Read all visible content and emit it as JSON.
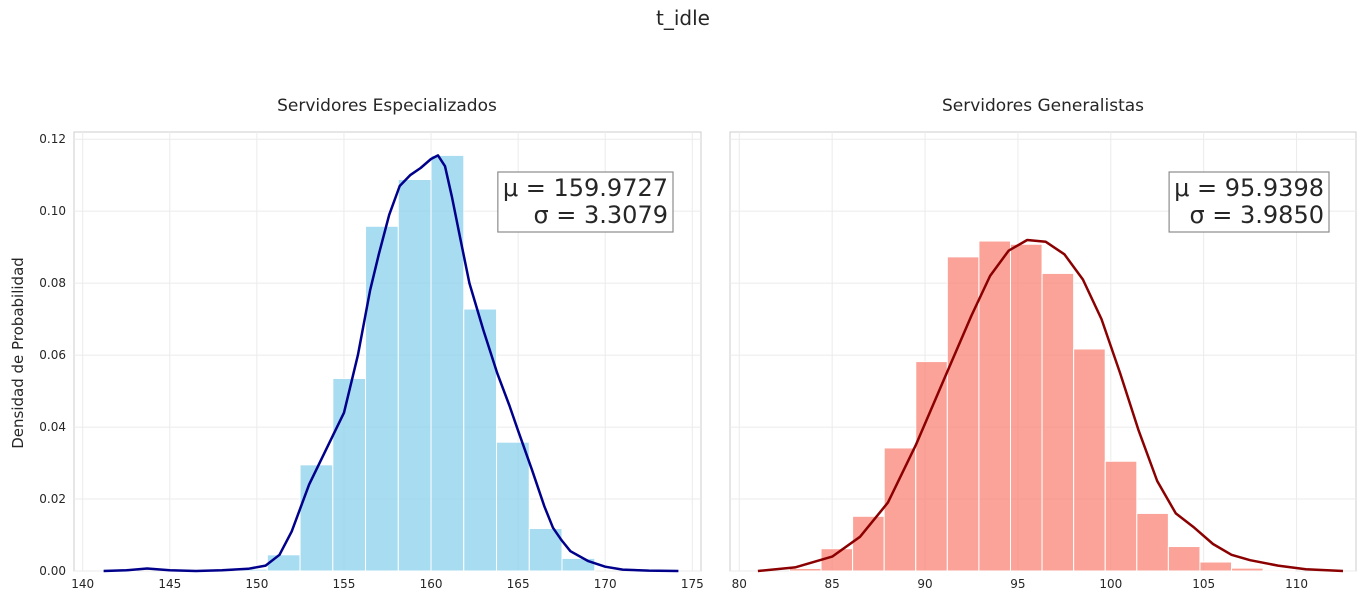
{
  "suptitle": "t_idle",
  "ylabel": "Densidad de Probabilidad",
  "chart_data": [
    {
      "type": "bar",
      "title": "Servidores Especializados",
      "ylabel": "Densidad de Probabilidad",
      "xlim": [
        139.5,
        175.5
      ],
      "ylim": [
        0,
        0.122
      ],
      "xticks": [
        140,
        145,
        150,
        155,
        160,
        165,
        170,
        175
      ],
      "yticks": [
        0.0,
        0.02,
        0.04,
        0.06,
        0.08,
        0.1,
        0.12
      ],
      "ytick_labels": [
        "0.00",
        "0.02",
        "0.04",
        "0.06",
        "0.08",
        "0.10",
        "0.12"
      ],
      "grid": true,
      "bar_color": "#87ceeb",
      "curve_color": "#00008b",
      "histogram": {
        "bin_edges": [
          141.2,
          143.08,
          144.96,
          146.84,
          148.72,
          150.6,
          152.48,
          154.36,
          156.24,
          158.12,
          160.0,
          161.88,
          163.76,
          165.64,
          167.52,
          169.4
        ],
        "density": [
          0.0005,
          0.0,
          0.0,
          0.0,
          0.0005,
          0.0045,
          0.0295,
          0.0535,
          0.0958,
          0.1088,
          0.1155,
          0.0728,
          0.0358,
          0.0118,
          0.0035
        ]
      },
      "kde": {
        "x": [
          141.2,
          142.5,
          143.7,
          145.0,
          146.5,
          148.0,
          149.5,
          150.5,
          151.3,
          152.0,
          153.0,
          154.0,
          155.0,
          155.8,
          156.5,
          157.0,
          157.6,
          158.2,
          158.8,
          159.4,
          160.0,
          160.4,
          160.8,
          161.2,
          161.7,
          162.2,
          163.0,
          163.8,
          164.5,
          165.0,
          165.8,
          166.5,
          167.0,
          167.5,
          168.0,
          169.0,
          170.0,
          171.0,
          172.5,
          174.2
        ],
        "y": [
          0.0,
          0.0002,
          0.0007,
          0.0002,
          0.0,
          0.0002,
          0.0006,
          0.0015,
          0.0045,
          0.011,
          0.024,
          0.034,
          0.044,
          0.06,
          0.078,
          0.088,
          0.099,
          0.107,
          0.11,
          0.112,
          0.1145,
          0.1155,
          0.1125,
          0.104,
          0.092,
          0.08,
          0.067,
          0.055,
          0.046,
          0.039,
          0.028,
          0.018,
          0.012,
          0.0085,
          0.0055,
          0.0028,
          0.0012,
          0.0004,
          0.0001,
          0.0
        ]
      },
      "stats": {
        "mu": "μ = 159.9727",
        "sigma": "σ = 3.3079"
      }
    },
    {
      "type": "bar",
      "title": "Servidores Generalistas",
      "xlim": [
        79.5,
        113.2
      ],
      "ylim": [
        0,
        0.122
      ],
      "xticks": [
        80,
        85,
        90,
        95,
        100,
        105,
        110
      ],
      "yticks": [
        0.0,
        0.02,
        0.04,
        0.06,
        0.08,
        0.1,
        0.12
      ],
      "grid": true,
      "bar_color": "#fa8072",
      "curve_color": "#8b0000",
      "histogram": {
        "bin_edges": [
          81.0,
          82.7,
          84.4,
          86.1,
          87.8,
          89.5,
          91.2,
          92.9,
          94.6,
          96.3,
          98.0,
          99.7,
          101.4,
          103.1,
          104.8,
          106.5,
          108.2,
          109.9
        ],
        "density": [
          0.0,
          0.0007,
          0.0062,
          0.0152,
          0.0342,
          0.0582,
          0.0873,
          0.0917,
          0.0908,
          0.0827,
          0.0617,
          0.0305,
          0.016,
          0.0068,
          0.0025,
          0.0008,
          0.0003
        ]
      },
      "kde": {
        "x": [
          81.0,
          83.0,
          85.0,
          86.5,
          88.0,
          89.5,
          91.0,
          92.5,
          93.5,
          94.5,
          95.5,
          96.5,
          97.5,
          98.5,
          99.5,
          100.5,
          101.5,
          102.5,
          103.5,
          104.5,
          105.5,
          106.5,
          107.5,
          109.0,
          110.5,
          112.5
        ],
        "y": [
          0.0,
          0.001,
          0.004,
          0.0095,
          0.019,
          0.035,
          0.053,
          0.071,
          0.082,
          0.089,
          0.092,
          0.0915,
          0.088,
          0.081,
          0.07,
          0.055,
          0.039,
          0.025,
          0.016,
          0.012,
          0.0075,
          0.0045,
          0.003,
          0.0015,
          0.0005,
          0.0
        ]
      },
      "stats": {
        "mu": "μ = 95.9398",
        "sigma": "σ = 3.9850"
      }
    }
  ]
}
